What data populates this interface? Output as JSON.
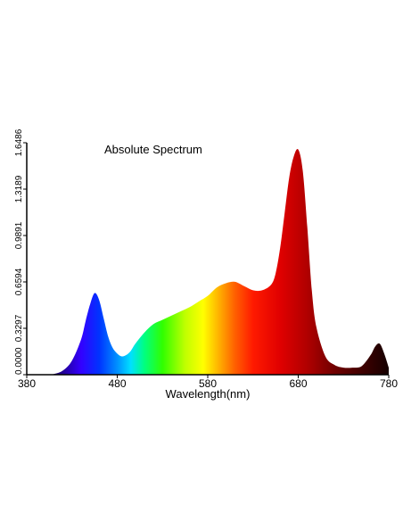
{
  "chart_data": {
    "type": "area",
    "title": "Absolute Spectrum",
    "xlabel": "Wavelength(nm)",
    "ylabel": "",
    "xlim": [
      380,
      780
    ],
    "ylim": [
      0,
      1.6486
    ],
    "x_ticks": [
      "380",
      "480",
      "580",
      "680",
      "780"
    ],
    "y_ticks": [
      "0.0000",
      "0.3297",
      "0.6594",
      "0.9891",
      "1.3189",
      "1.6486"
    ],
    "grid": false,
    "legend": "none",
    "fill": "visible-spectrum color gradient",
    "series": [
      {
        "x": [
          380,
          400,
          410,
          420,
          430,
          440,
          445,
          450,
          455,
          460,
          465,
          470,
          475,
          480,
          485,
          490,
          495,
          500,
          510,
          520,
          530,
          540,
          550,
          560,
          570,
          580,
          590,
          600,
          610,
          620,
          630,
          640,
          650,
          655,
          660,
          665,
          670,
          675,
          680,
          685,
          690,
          695,
          700,
          710,
          720,
          730,
          740,
          750,
          760,
          765,
          770,
          775,
          780
        ],
        "values": [
          0,
          0.001,
          0.005,
          0.03,
          0.1,
          0.25,
          0.38,
          0.5,
          0.58,
          0.53,
          0.4,
          0.27,
          0.19,
          0.15,
          0.13,
          0.14,
          0.17,
          0.22,
          0.3,
          0.36,
          0.39,
          0.42,
          0.45,
          0.48,
          0.52,
          0.56,
          0.62,
          0.65,
          0.66,
          0.63,
          0.6,
          0.6,
          0.64,
          0.72,
          0.9,
          1.15,
          1.4,
          1.55,
          1.6,
          1.45,
          1.05,
          0.6,
          0.34,
          0.13,
          0.07,
          0.05,
          0.05,
          0.06,
          0.14,
          0.2,
          0.22,
          0.15,
          0.05
        ]
      }
    ]
  }
}
